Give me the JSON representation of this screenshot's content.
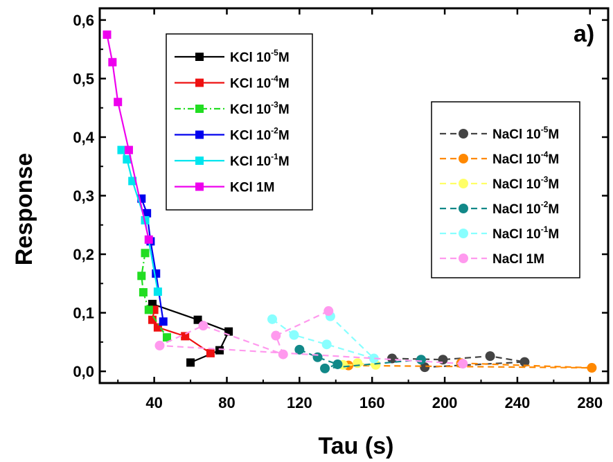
{
  "chart_data": {
    "type": "scatter",
    "panel_label": "a)",
    "title": "",
    "xlabel": "Tau (s)",
    "ylabel": "Response",
    "xlim": [
      10,
      290
    ],
    "ylim": [
      -0.02,
      0.62
    ],
    "xticks": [
      40,
      80,
      120,
      160,
      200,
      240,
      280
    ],
    "xtick_labels": [
      "40",
      "80",
      "120",
      "160",
      "200",
      "240",
      "280"
    ],
    "yticks": [
      0.0,
      0.1,
      0.2,
      0.3,
      0.4,
      0.5,
      0.6
    ],
    "ytick_labels": [
      "0,0",
      "0,1",
      "0,2",
      "0,3",
      "0,4",
      "0,5",
      "0,6"
    ],
    "grid": false,
    "legends": [
      {
        "placement": "top-left",
        "group": "KCl"
      },
      {
        "placement": "middle-right",
        "group": "NaCl"
      }
    ],
    "series": [
      {
        "group": "KCl",
        "name_base": "KCl 10",
        "exp": "-5",
        "name_suffix": "M",
        "color": "#000000",
        "marker": "square",
        "line": "solid",
        "points": [
          [
            39,
            0.115
          ],
          [
            64,
            0.088
          ],
          [
            81,
            0.068
          ],
          [
            76,
            0.036
          ],
          [
            60,
            0.015
          ]
        ]
      },
      {
        "group": "KCl",
        "name_base": "KCl 10",
        "exp": "-4",
        "name_suffix": "M",
        "color": "#ee1111",
        "marker": "square",
        "line": "solid",
        "points": [
          [
            40,
            0.105
          ],
          [
            39,
            0.088
          ],
          [
            42,
            0.075
          ],
          [
            57,
            0.06
          ],
          [
            71,
            0.031
          ]
        ]
      },
      {
        "group": "KCl",
        "name_base": "KCl 10",
        "exp": "-3",
        "name_suffix": "M",
        "color": "#22dd22",
        "marker": "square",
        "line": "dashdot",
        "points": [
          [
            35,
            0.202
          ],
          [
            33,
            0.163
          ],
          [
            34,
            0.135
          ],
          [
            37,
            0.105
          ],
          [
            47,
            0.058
          ]
        ]
      },
      {
        "group": "KCl",
        "name_base": "KCl 10",
        "exp": "-2",
        "name_suffix": "M",
        "color": "#0000ee",
        "marker": "square",
        "line": "solid",
        "points": [
          [
            33,
            0.295
          ],
          [
            36,
            0.27
          ],
          [
            38,
            0.222
          ],
          [
            41,
            0.167
          ],
          [
            45,
            0.085
          ]
        ]
      },
      {
        "group": "KCl",
        "name_base": "KCl 10",
        "exp": "-1",
        "name_suffix": "M",
        "color": "#00e5ee",
        "marker": "square",
        "line": "solid",
        "points": [
          [
            22,
            0.378
          ],
          [
            25,
            0.362
          ],
          [
            28,
            0.325
          ],
          [
            35,
            0.258
          ],
          [
            42,
            0.136
          ]
        ]
      },
      {
        "group": "KCl",
        "name_base": "KCl 1M",
        "exp": "",
        "name_suffix": "",
        "color": "#ee00ee",
        "marker": "square",
        "line": "solid",
        "points": [
          [
            14,
            0.575
          ],
          [
            17,
            0.528
          ],
          [
            20,
            0.46
          ],
          [
            26,
            0.378
          ],
          [
            37,
            0.225
          ]
        ]
      },
      {
        "group": "NaCl",
        "name_base": "NaCl 10",
        "exp": "-5",
        "name_suffix": "M",
        "color": "#444444",
        "marker": "circle",
        "line": "dashed",
        "points": [
          [
            171,
            0.022
          ],
          [
            199,
            0.02
          ],
          [
            225,
            0.026
          ],
          [
            244,
            0.016
          ],
          [
            189,
            0.007
          ]
        ]
      },
      {
        "group": "NaCl",
        "name_base": "NaCl 10",
        "exp": "-4",
        "name_suffix": "M",
        "color": "#ff8800",
        "marker": "circle",
        "line": "dashed",
        "points": [
          [
            209,
            0.014
          ],
          [
            281,
            0.006
          ],
          [
            147,
            0.01
          ]
        ]
      },
      {
        "group": "NaCl",
        "name_base": "NaCl 10",
        "exp": "-3",
        "name_suffix": "M",
        "color": "#ffff66",
        "marker": "circle",
        "line": "dashed",
        "points": [
          [
            152,
            0.014
          ],
          [
            162,
            0.011
          ],
          [
            144,
            0.011
          ]
        ]
      },
      {
        "group": "NaCl",
        "name_base": "NaCl 10",
        "exp": "-2",
        "name_suffix": "M",
        "color": "#118888",
        "marker": "circle",
        "line": "dashed",
        "points": [
          [
            120,
            0.037
          ],
          [
            130,
            0.024
          ],
          [
            141,
            0.012
          ],
          [
            134,
            0.005
          ],
          [
            187,
            0.02
          ]
        ]
      },
      {
        "group": "NaCl",
        "name_base": "NaCl 10",
        "exp": "-1",
        "name_suffix": "M",
        "color": "#88ffff",
        "marker": "circle",
        "line": "dashed",
        "points": [
          [
            105,
            0.089
          ],
          [
            117,
            0.062
          ],
          [
            135,
            0.046
          ],
          [
            161,
            0.022
          ],
          [
            137,
            0.094
          ]
        ]
      },
      {
        "group": "NaCl",
        "name_base": "NaCl 1M",
        "exp": "",
        "name_suffix": "",
        "color": "#ff99ee",
        "marker": "circle",
        "line": "dashed",
        "points": [
          [
            136,
            0.103
          ],
          [
            107,
            0.061
          ],
          [
            111,
            0.029
          ],
          [
            67,
            0.078
          ],
          [
            43,
            0.044
          ],
          [
            210,
            0.013
          ]
        ]
      }
    ]
  }
}
